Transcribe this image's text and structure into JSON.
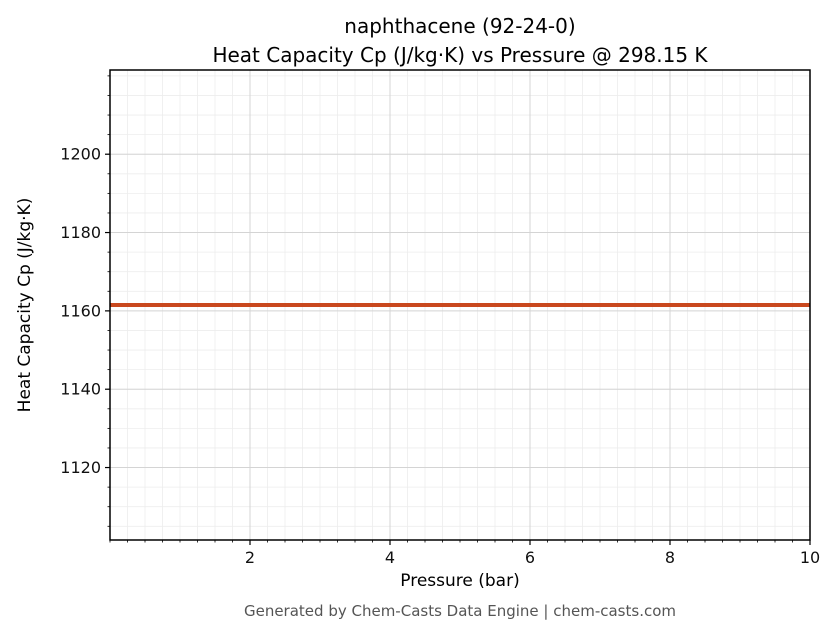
{
  "footer": "Generated by Chem-Casts Data Engine | chem-casts.com",
  "chart_data": {
    "type": "line",
    "title_lines": [
      "naphthacene (92-24-0)",
      "Heat Capacity Cp (J/kg·K) vs Pressure @ 298.15 K"
    ],
    "xlabel": "Pressure (bar)",
    "ylabel": "Heat Capacity Cp (J/kg·K)",
    "xlim": [
      0,
      10
    ],
    "ylim": [
      1101.5,
      1221.5
    ],
    "xticks": [
      2,
      4,
      6,
      8,
      10
    ],
    "yticks": [
      1120,
      1140,
      1160,
      1180,
      1200
    ],
    "minor_x_step": 0.25,
    "minor_y_step": 5,
    "grid": {
      "major_color": "#d4d4d4",
      "minor_color": "#ededed"
    },
    "axis_color": "#000000",
    "tick_label_color": "#111111",
    "series": [
      {
        "name": "Heat Capacity Cp",
        "color": "#c9481e",
        "linewidth": 4,
        "x": [
          0,
          10
        ],
        "y": [
          1161.5,
          1161.5
        ]
      }
    ]
  }
}
